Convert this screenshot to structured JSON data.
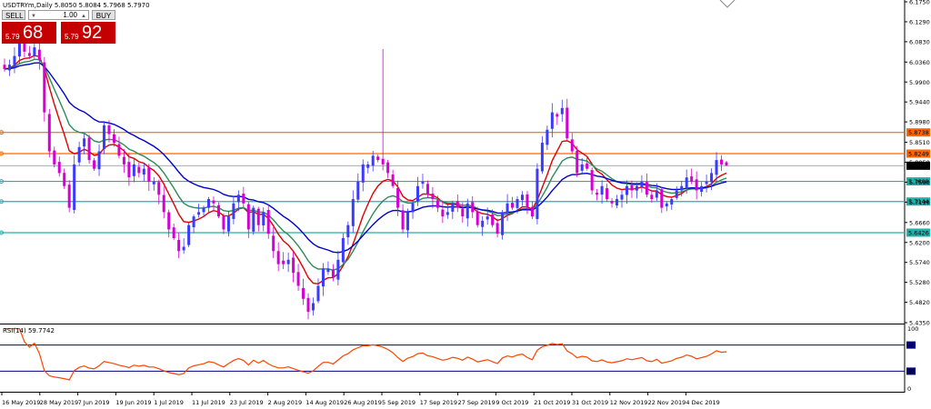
{
  "header": {
    "symbol_text": "USDTRYm,Daily  5.8050 5.8084 5.7968 5.7970",
    "rsi_label": "RSI(14) 59.7742"
  },
  "trade_panel": {
    "sell_label": "SELL",
    "buy_label": "BUY",
    "lot_value": "1.00",
    "sell_price_small": "5.79",
    "sell_price_big": "68",
    "buy_price_small": "5.79",
    "buy_price_big": "92"
  },
  "colors": {
    "bull": "#3b3bff",
    "bear": "#d400d4",
    "fast_ma": "#e00000",
    "mid_ma": "#2e8b57",
    "slow_ma": "#0000cc",
    "orange_line": "#ff6600",
    "teal_line": "#20b2aa",
    "rsi": "#ff4500",
    "rsi_level": "#000080",
    "sell_box": "#c40000"
  },
  "chart_data": {
    "type": "candlestick",
    "title": "USDTRYm,Daily",
    "ohlc_header": {
      "open": 5.805,
      "high": 5.8084,
      "low": 5.7968,
      "close": 5.797
    },
    "price_range": [
      5.435,
      6.175
    ],
    "price_ticks": [
      "6.1750",
      "6.1290",
      "6.0830",
      "6.0360",
      "5.9900",
      "5.9440",
      "5.8980",
      "5.8510",
      "5.8050",
      "5.7590",
      "5.7130",
      "5.6660",
      "5.6200",
      "5.5740",
      "5.5280",
      "5.4820",
      "5.4350"
    ],
    "date_labels": [
      "16 May 2019",
      "28 May 2019",
      "7 Jun 2019",
      "19 Jun 2019",
      "1 Jul 2019",
      "11 Jul 2019",
      "23 Jul 2019",
      "2 Aug 2019",
      "14 Aug 2019",
      "26 Aug 2019",
      "5 Sep 2019",
      "17 Sep 2019",
      "27 Sep 2019",
      "9 Oct 2019",
      "21 Oct 2019",
      "31 Oct 2019",
      "12 Nov 2019",
      "22 Nov 2019",
      "4 Dec 2019"
    ],
    "bar_count": 146,
    "horizontal_levels": [
      {
        "label": "5.8738",
        "value": 5.8738,
        "color": "#ff6600"
      },
      {
        "label": "5.8249",
        "value": 5.8249,
        "color": "#ff6600"
      },
      {
        "label": "5.7608",
        "value": 5.7608,
        "color": "#20b2aa"
      },
      {
        "label": "5.7144",
        "value": 5.7144,
        "color": "#20b2aa"
      },
      {
        "label": "5.6426",
        "value": 5.6426,
        "color": "#20b2aa"
      }
    ],
    "current_price": {
      "label": "5.7970",
      "value": 5.797
    },
    "close_path": [
      6.02,
      6.03,
      6.05,
      6.08,
      6.06,
      6.05,
      6.07,
      6.04,
      5.92,
      5.83,
      5.8,
      5.78,
      5.75,
      5.7,
      5.8,
      5.84,
      5.86,
      5.81,
      5.79,
      5.83,
      5.89,
      5.87,
      5.85,
      5.82,
      5.8,
      5.77,
      5.8,
      5.78,
      5.79,
      5.76,
      5.76,
      5.73,
      5.69,
      5.65,
      5.63,
      5.6,
      5.61,
      5.66,
      5.68,
      5.69,
      5.7,
      5.72,
      5.71,
      5.68,
      5.65,
      5.68,
      5.71,
      5.73,
      5.71,
      5.65,
      5.7,
      5.66,
      5.69,
      5.64,
      5.6,
      5.57,
      5.57,
      5.58,
      5.55,
      5.52,
      5.49,
      5.46,
      5.48,
      5.52,
      5.56,
      5.56,
      5.54,
      5.58,
      5.63,
      5.66,
      5.72,
      5.76,
      5.8,
      5.8,
      5.82,
      5.81,
      5.8,
      5.78,
      5.75,
      5.7,
      5.65,
      5.69,
      5.71,
      5.75,
      5.76,
      5.73,
      5.72,
      5.7,
      5.68,
      5.69,
      5.71,
      5.7,
      5.68,
      5.71,
      5.69,
      5.66,
      5.67,
      5.68,
      5.66,
      5.64,
      5.69,
      5.71,
      5.7,
      5.72,
      5.73,
      5.7,
      5.68,
      5.79,
      5.85,
      5.88,
      5.92,
      5.91,
      5.93,
      5.86,
      5.83,
      5.78,
      5.8,
      5.79,
      5.74,
      5.73,
      5.75,
      5.72,
      5.71,
      5.72,
      5.73,
      5.75,
      5.74,
      5.75,
      5.76,
      5.73,
      5.72,
      5.74,
      5.7,
      5.71,
      5.72,
      5.74,
      5.75,
      5.77,
      5.76,
      5.74,
      5.75,
      5.76,
      5.78,
      5.81,
      5.8,
      5.797
    ],
    "spike": {
      "bar_index": 76,
      "high": 6.066
    },
    "rsi": {
      "label": "RSI(14) 59.7742",
      "value": 59.7742,
      "levels": [
        70,
        30
      ],
      "range": [
        0,
        100
      ],
      "right_ticks": [
        "100",
        "70",
        "30",
        "0"
      ]
    },
    "moving_averages": [
      {
        "color": "#e00000",
        "role": "fast"
      },
      {
        "color": "#2e8b57",
        "role": "mid"
      },
      {
        "color": "#0000cc",
        "role": "slow"
      }
    ]
  }
}
